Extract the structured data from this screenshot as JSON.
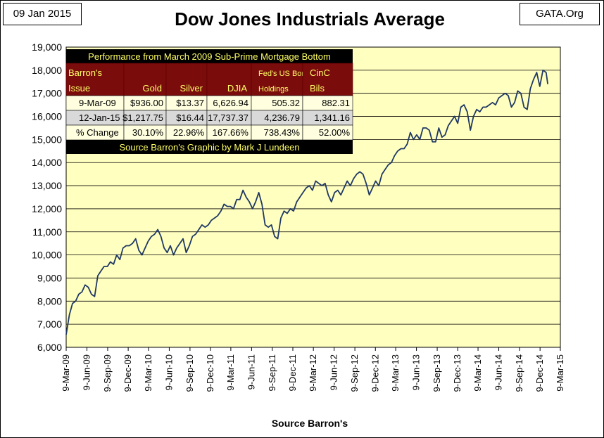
{
  "header": {
    "date_label": "09 Jan 2015",
    "title": "Dow Jones Industrials Average",
    "brand": "GATA.Org"
  },
  "colors": {
    "plot_background": "#ffffc0",
    "line": "#1f3864",
    "table_header_background": "#7b0c0c",
    "table_header_text": "#ffff66",
    "table_title_background": "#000000",
    "table_title_text": "#ffff66",
    "table_row_light": "#ffffe0",
    "table_row_gray": "#d9d9d9",
    "gridline": "#000000"
  },
  "chart_data": {
    "type": "line",
    "title": "Dow Jones Industrials Average",
    "xlabel": "Source Barron's",
    "ylabel": "",
    "ylim": [
      6000,
      19000
    ],
    "yticks": [
      6000,
      7000,
      8000,
      9000,
      10000,
      11000,
      12000,
      13000,
      14000,
      15000,
      16000,
      17000,
      18000,
      19000
    ],
    "ytick_labels": [
      "6,000",
      "7,000",
      "8,000",
      "9,000",
      "10,000",
      "11,000",
      "12,000",
      "13,000",
      "14,000",
      "15,000",
      "16,000",
      "17,000",
      "18,000",
      "19,000"
    ],
    "xlim": [
      "2009-03-09",
      "2015-03-09"
    ],
    "xtick_labels": [
      "9-Mar-09",
      "9-Jun-09",
      "9-Sep-09",
      "9-Dec-09",
      "9-Mar-10",
      "9-Jun-10",
      "9-Sep-10",
      "9-Dec-10",
      "9-Mar-11",
      "9-Jun-11",
      "9-Sep-11",
      "9-Dec-11",
      "9-Mar-12",
      "9-Jun-12",
      "9-Sep-12",
      "9-Dec-12",
      "9-Mar-13",
      "9-Jun-13",
      "9-Sep-13",
      "9-Dec-13",
      "9-Mar-14",
      "9-Jun-14",
      "9-Sep-14",
      "9-Dec-14",
      "9-Mar-15"
    ],
    "grid": "horizontal",
    "series": [
      {
        "x": [
          "2009-03-09",
          "2009-03-23",
          "2009-04-06",
          "2009-04-20",
          "2009-05-04",
          "2009-05-18",
          "2009-06-01",
          "2009-06-15",
          "2009-06-29",
          "2009-07-13",
          "2009-07-27",
          "2009-08-10",
          "2009-08-24",
          "2009-09-08",
          "2009-09-21",
          "2009-10-05",
          "2009-10-19",
          "2009-11-02",
          "2009-11-16",
          "2009-11-30",
          "2009-12-14",
          "2009-12-28",
          "2010-01-11",
          "2010-01-25",
          "2010-02-08",
          "2010-02-22",
          "2010-03-08",
          "2010-03-22",
          "2010-04-05",
          "2010-04-19",
          "2010-05-03",
          "2010-05-17",
          "2010-05-31",
          "2010-06-14",
          "2010-06-28",
          "2010-07-12",
          "2010-07-26",
          "2010-08-09",
          "2010-08-23",
          "2010-09-06",
          "2010-09-20",
          "2010-10-04",
          "2010-10-18",
          "2010-11-01",
          "2010-11-15",
          "2010-11-29",
          "2010-12-13",
          "2010-12-27",
          "2011-01-10",
          "2011-01-24",
          "2011-02-07",
          "2011-02-21",
          "2011-03-07",
          "2011-03-21",
          "2011-04-04",
          "2011-04-18",
          "2011-05-02",
          "2011-05-16",
          "2011-05-30",
          "2011-06-13",
          "2011-06-27",
          "2011-07-11",
          "2011-07-25",
          "2011-08-08",
          "2011-08-22",
          "2011-09-05",
          "2011-09-19",
          "2011-10-03",
          "2011-10-17",
          "2011-10-31",
          "2011-11-14",
          "2011-11-28",
          "2011-12-12",
          "2011-12-26",
          "2012-01-09",
          "2012-01-23",
          "2012-02-06",
          "2012-02-20",
          "2012-03-05",
          "2012-03-19",
          "2012-04-02",
          "2012-04-16",
          "2012-04-30",
          "2012-05-14",
          "2012-05-28",
          "2012-06-11",
          "2012-06-25",
          "2012-07-09",
          "2012-07-23",
          "2012-08-06",
          "2012-08-20",
          "2012-09-03",
          "2012-09-17",
          "2012-10-01",
          "2012-10-15",
          "2012-10-29",
          "2012-11-12",
          "2012-11-26",
          "2012-12-10",
          "2012-12-24",
          "2013-01-07",
          "2013-01-21",
          "2013-02-04",
          "2013-02-18",
          "2013-03-04",
          "2013-03-18",
          "2013-04-01",
          "2013-04-15",
          "2013-04-29",
          "2013-05-13",
          "2013-05-27",
          "2013-06-10",
          "2013-06-24",
          "2013-07-08",
          "2013-07-22",
          "2013-08-05",
          "2013-08-19",
          "2013-09-02",
          "2013-09-16",
          "2013-09-30",
          "2013-10-14",
          "2013-10-28",
          "2013-11-11",
          "2013-11-25",
          "2013-12-09",
          "2013-12-23",
          "2014-01-06",
          "2014-01-20",
          "2014-02-03",
          "2014-02-17",
          "2014-03-03",
          "2014-03-17",
          "2014-03-31",
          "2014-04-14",
          "2014-04-28",
          "2014-05-12",
          "2014-05-26",
          "2014-06-09",
          "2014-06-23",
          "2014-07-07",
          "2014-07-21",
          "2014-08-04",
          "2014-08-18",
          "2014-09-01",
          "2014-09-15",
          "2014-09-29",
          "2014-10-13",
          "2014-10-27",
          "2014-11-10",
          "2014-11-24",
          "2014-12-08",
          "2014-12-22",
          "2015-01-05",
          "2015-01-12"
        ],
        "y": [
          6547,
          7400,
          7900,
          8000,
          8300,
          8400,
          8700,
          8600,
          8300,
          8200,
          9100,
          9300,
          9500,
          9500,
          9700,
          9600,
          10000,
          9800,
          10300,
          10400,
          10400,
          10500,
          10700,
          10200,
          10000,
          10300,
          10600,
          10800,
          10900,
          11100,
          10800,
          10300,
          10100,
          10400,
          10000,
          10300,
          10500,
          10700,
          10100,
          10400,
          10800,
          10900,
          11100,
          11300,
          11200,
          11300,
          11500,
          11600,
          11700,
          11900,
          12200,
          12100,
          12100,
          12000,
          12400,
          12400,
          12800,
          12500,
          12300,
          12000,
          12300,
          12700,
          12200,
          11300,
          11200,
          11300,
          10800,
          10700,
          11600,
          11900,
          11800,
          12000,
          11900,
          12300,
          12500,
          12700,
          12900,
          13000,
          12800,
          13200,
          13100,
          13000,
          13100,
          12600,
          12300,
          12700,
          12800,
          12600,
          12900,
          13200,
          13000,
          13300,
          13500,
          13600,
          13500,
          13100,
          12600,
          12900,
          13200,
          13000,
          13500,
          13700,
          13900,
          14000,
          14300,
          14500,
          14600,
          14600,
          14800,
          15300,
          15000,
          15200,
          15000,
          15500,
          15500,
          15400,
          14900,
          14900,
          15500,
          15100,
          15200,
          15600,
          15800,
          16000,
          15700,
          16400,
          16500,
          16200,
          15400,
          16000,
          16300,
          16200,
          16400,
          16400,
          16500,
          16600,
          16500,
          16800,
          16900,
          17000,
          16900,
          16400,
          16600,
          17100,
          17000,
          16400,
          16300,
          17200,
          17600,
          17900,
          17300,
          18000,
          17900,
          17400
        ]
      }
    ],
    "table": {
      "title": "Performance from March 2009 Sub-Prime Mortgage Bottom",
      "headers": [
        [
          "Barron's",
          "Issue"
        ],
        [
          "",
          "Gold"
        ],
        [
          "",
          "Silver"
        ],
        [
          "",
          "DJIA"
        ],
        [
          "Fed's US Bond",
          "Holdings"
        ],
        [
          "CinC",
          "Bils"
        ]
      ],
      "rows": [
        [
          "9-Mar-09",
          "$936.00",
          "$13.37",
          "6,626.94",
          "505.32",
          "882.31"
        ],
        [
          "12-Jan-15",
          "$1,217.75",
          "$16.44",
          "17,737.37",
          "4,236.79",
          "1,341.16"
        ],
        [
          "% Change",
          "30.10%",
          "22.96%",
          "167.66%",
          "738.43%",
          "52.00%"
        ]
      ],
      "footer": "Source Barron's  Graphic by Mark J Lundeen"
    }
  }
}
